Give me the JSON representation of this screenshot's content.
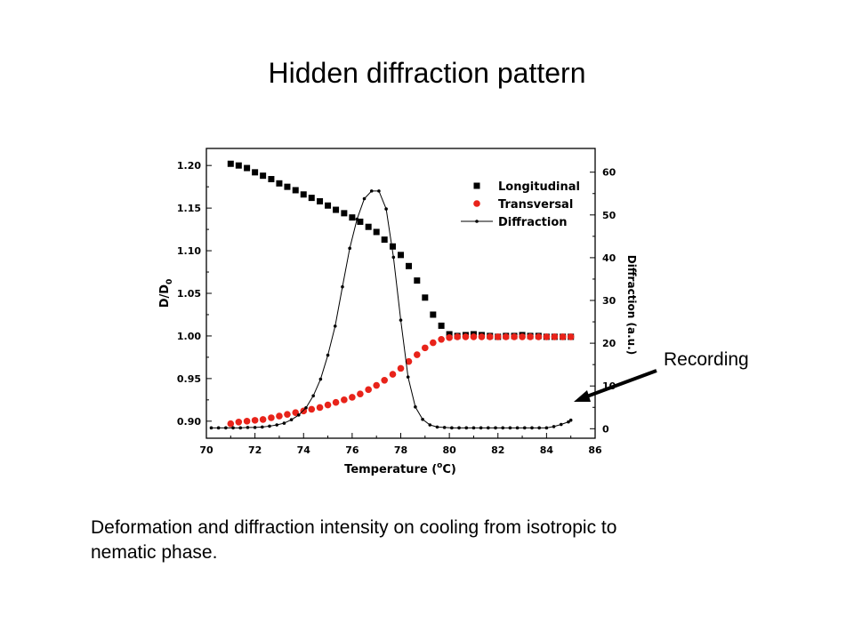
{
  "slide": {
    "title": "Hidden diffraction pattern",
    "caption_lines": [
      "Deformation and diffraction intensity on cooling from isotropic to",
      "nematic phase."
    ],
    "callout": "Recording"
  },
  "chart_data": {
    "type": "scatter",
    "xlabel": "Temperature (°C)",
    "xlabel_parts": {
      "main": "Temperature (",
      "sup": "o",
      "unit": "C)"
    },
    "ylabel": "D/D0",
    "ylabel_parts": {
      "main": "D/D",
      "sub": "0"
    },
    "y2label": "Diffraction (a.u.)",
    "xlim": [
      70,
      86
    ],
    "ylim": [
      0.88,
      1.22
    ],
    "y2lim": [
      -2.22,
      65.55
    ],
    "x_ticks": [
      "70",
      "72",
      "74",
      "76",
      "78",
      "80",
      "82",
      "84",
      "86"
    ],
    "y_ticks": [
      "0.90",
      "0.95",
      "1.00",
      "1.05",
      "1.10",
      "1.15",
      "1.20"
    ],
    "y2_ticks": [
      "0",
      "10",
      "20",
      "30",
      "40",
      "50",
      "60"
    ],
    "grid": false,
    "legend_position": "top-right",
    "series": [
      {
        "name": "Longitudinal",
        "axis": "left",
        "marker": "square",
        "color": "#000000",
        "x": [
          71.0,
          71.33,
          71.67,
          72.0,
          72.33,
          72.67,
          73.0,
          73.33,
          73.67,
          74.0,
          74.33,
          74.67,
          75.0,
          75.33,
          75.67,
          76.0,
          76.33,
          76.67,
          77.0,
          77.33,
          77.67,
          78.0,
          78.33,
          78.67,
          79.0,
          79.33,
          79.67,
          80.0,
          80.33,
          80.67,
          81.0,
          81.33,
          81.67,
          82.0,
          82.33,
          82.67,
          83.0,
          83.33,
          83.67,
          84.0,
          84.33,
          84.67,
          85.0
        ],
        "y": [
          1.202,
          1.2,
          1.197,
          1.192,
          1.188,
          1.184,
          1.179,
          1.175,
          1.171,
          1.166,
          1.162,
          1.158,
          1.153,
          1.148,
          1.144,
          1.139,
          1.134,
          1.128,
          1.122,
          1.113,
          1.105,
          1.095,
          1.082,
          1.065,
          1.045,
          1.025,
          1.012,
          1.002,
          1.0,
          1.001,
          1.002,
          1.001,
          1.0,
          0.999,
          1.0,
          1.0,
          1.001,
          1.0,
          1.0,
          0.999,
          0.999,
          0.999,
          0.999
        ]
      },
      {
        "name": "Transversal",
        "axis": "left",
        "marker": "circle",
        "color": "#e8231a",
        "x": [
          71.0,
          71.33,
          71.67,
          72.0,
          72.33,
          72.67,
          73.0,
          73.33,
          73.67,
          74.0,
          74.33,
          74.67,
          75.0,
          75.33,
          75.67,
          76.0,
          76.33,
          76.67,
          77.0,
          77.33,
          77.67,
          78.0,
          78.33,
          78.67,
          79.0,
          79.33,
          79.67,
          80.0,
          80.33,
          80.67,
          81.0,
          81.33,
          81.67,
          82.0,
          82.33,
          82.67,
          83.0,
          83.33,
          83.67,
          84.0,
          84.33,
          84.67,
          85.0
        ],
        "y": [
          0.897,
          0.899,
          0.9,
          0.901,
          0.902,
          0.904,
          0.906,
          0.908,
          0.91,
          0.912,
          0.914,
          0.916,
          0.919,
          0.922,
          0.925,
          0.928,
          0.932,
          0.937,
          0.942,
          0.948,
          0.955,
          0.962,
          0.97,
          0.978,
          0.986,
          0.992,
          0.996,
          0.998,
          0.999,
          0.999,
          0.999,
          0.999,
          0.999,
          0.999,
          0.999,
          0.999,
          0.999,
          0.999,
          0.999,
          0.999,
          0.999,
          0.999,
          0.999
        ]
      },
      {
        "name": "Diffraction",
        "axis": "right",
        "marker": "dot-line",
        "color": "#000000",
        "x": [
          70.2,
          70.5,
          70.8,
          71.1,
          71.4,
          71.7,
          72.0,
          72.3,
          72.6,
          72.9,
          73.2,
          73.5,
          73.8,
          74.1,
          74.4,
          74.7,
          75.0,
          75.3,
          75.6,
          75.9,
          76.2,
          76.5,
          76.8,
          77.1,
          77.4,
          77.7,
          78.0,
          78.3,
          78.6,
          78.9,
          79.2,
          79.5,
          79.8,
          80.1,
          80.4,
          80.7,
          81.0,
          81.3,
          81.6,
          81.9,
          82.2,
          82.5,
          82.8,
          83.1,
          83.4,
          83.7,
          84.0,
          84.3,
          84.6,
          84.9,
          85.0
        ],
        "y": [
          0.2,
          0.2,
          0.2,
          0.2,
          0.2,
          0.3,
          0.3,
          0.4,
          0.6,
          0.9,
          1.3,
          2.1,
          3.2,
          4.9,
          7.7,
          11.6,
          17.2,
          24.0,
          33.2,
          42.2,
          49.0,
          53.8,
          55.6,
          55.6,
          51.4,
          40.1,
          25.4,
          12.1,
          5.1,
          2.2,
          0.9,
          0.4,
          0.3,
          0.2,
          0.2,
          0.2,
          0.2,
          0.2,
          0.2,
          0.2,
          0.2,
          0.2,
          0.2,
          0.2,
          0.2,
          0.2,
          0.2,
          0.5,
          1.0,
          1.6,
          2.0
        ]
      }
    ]
  }
}
